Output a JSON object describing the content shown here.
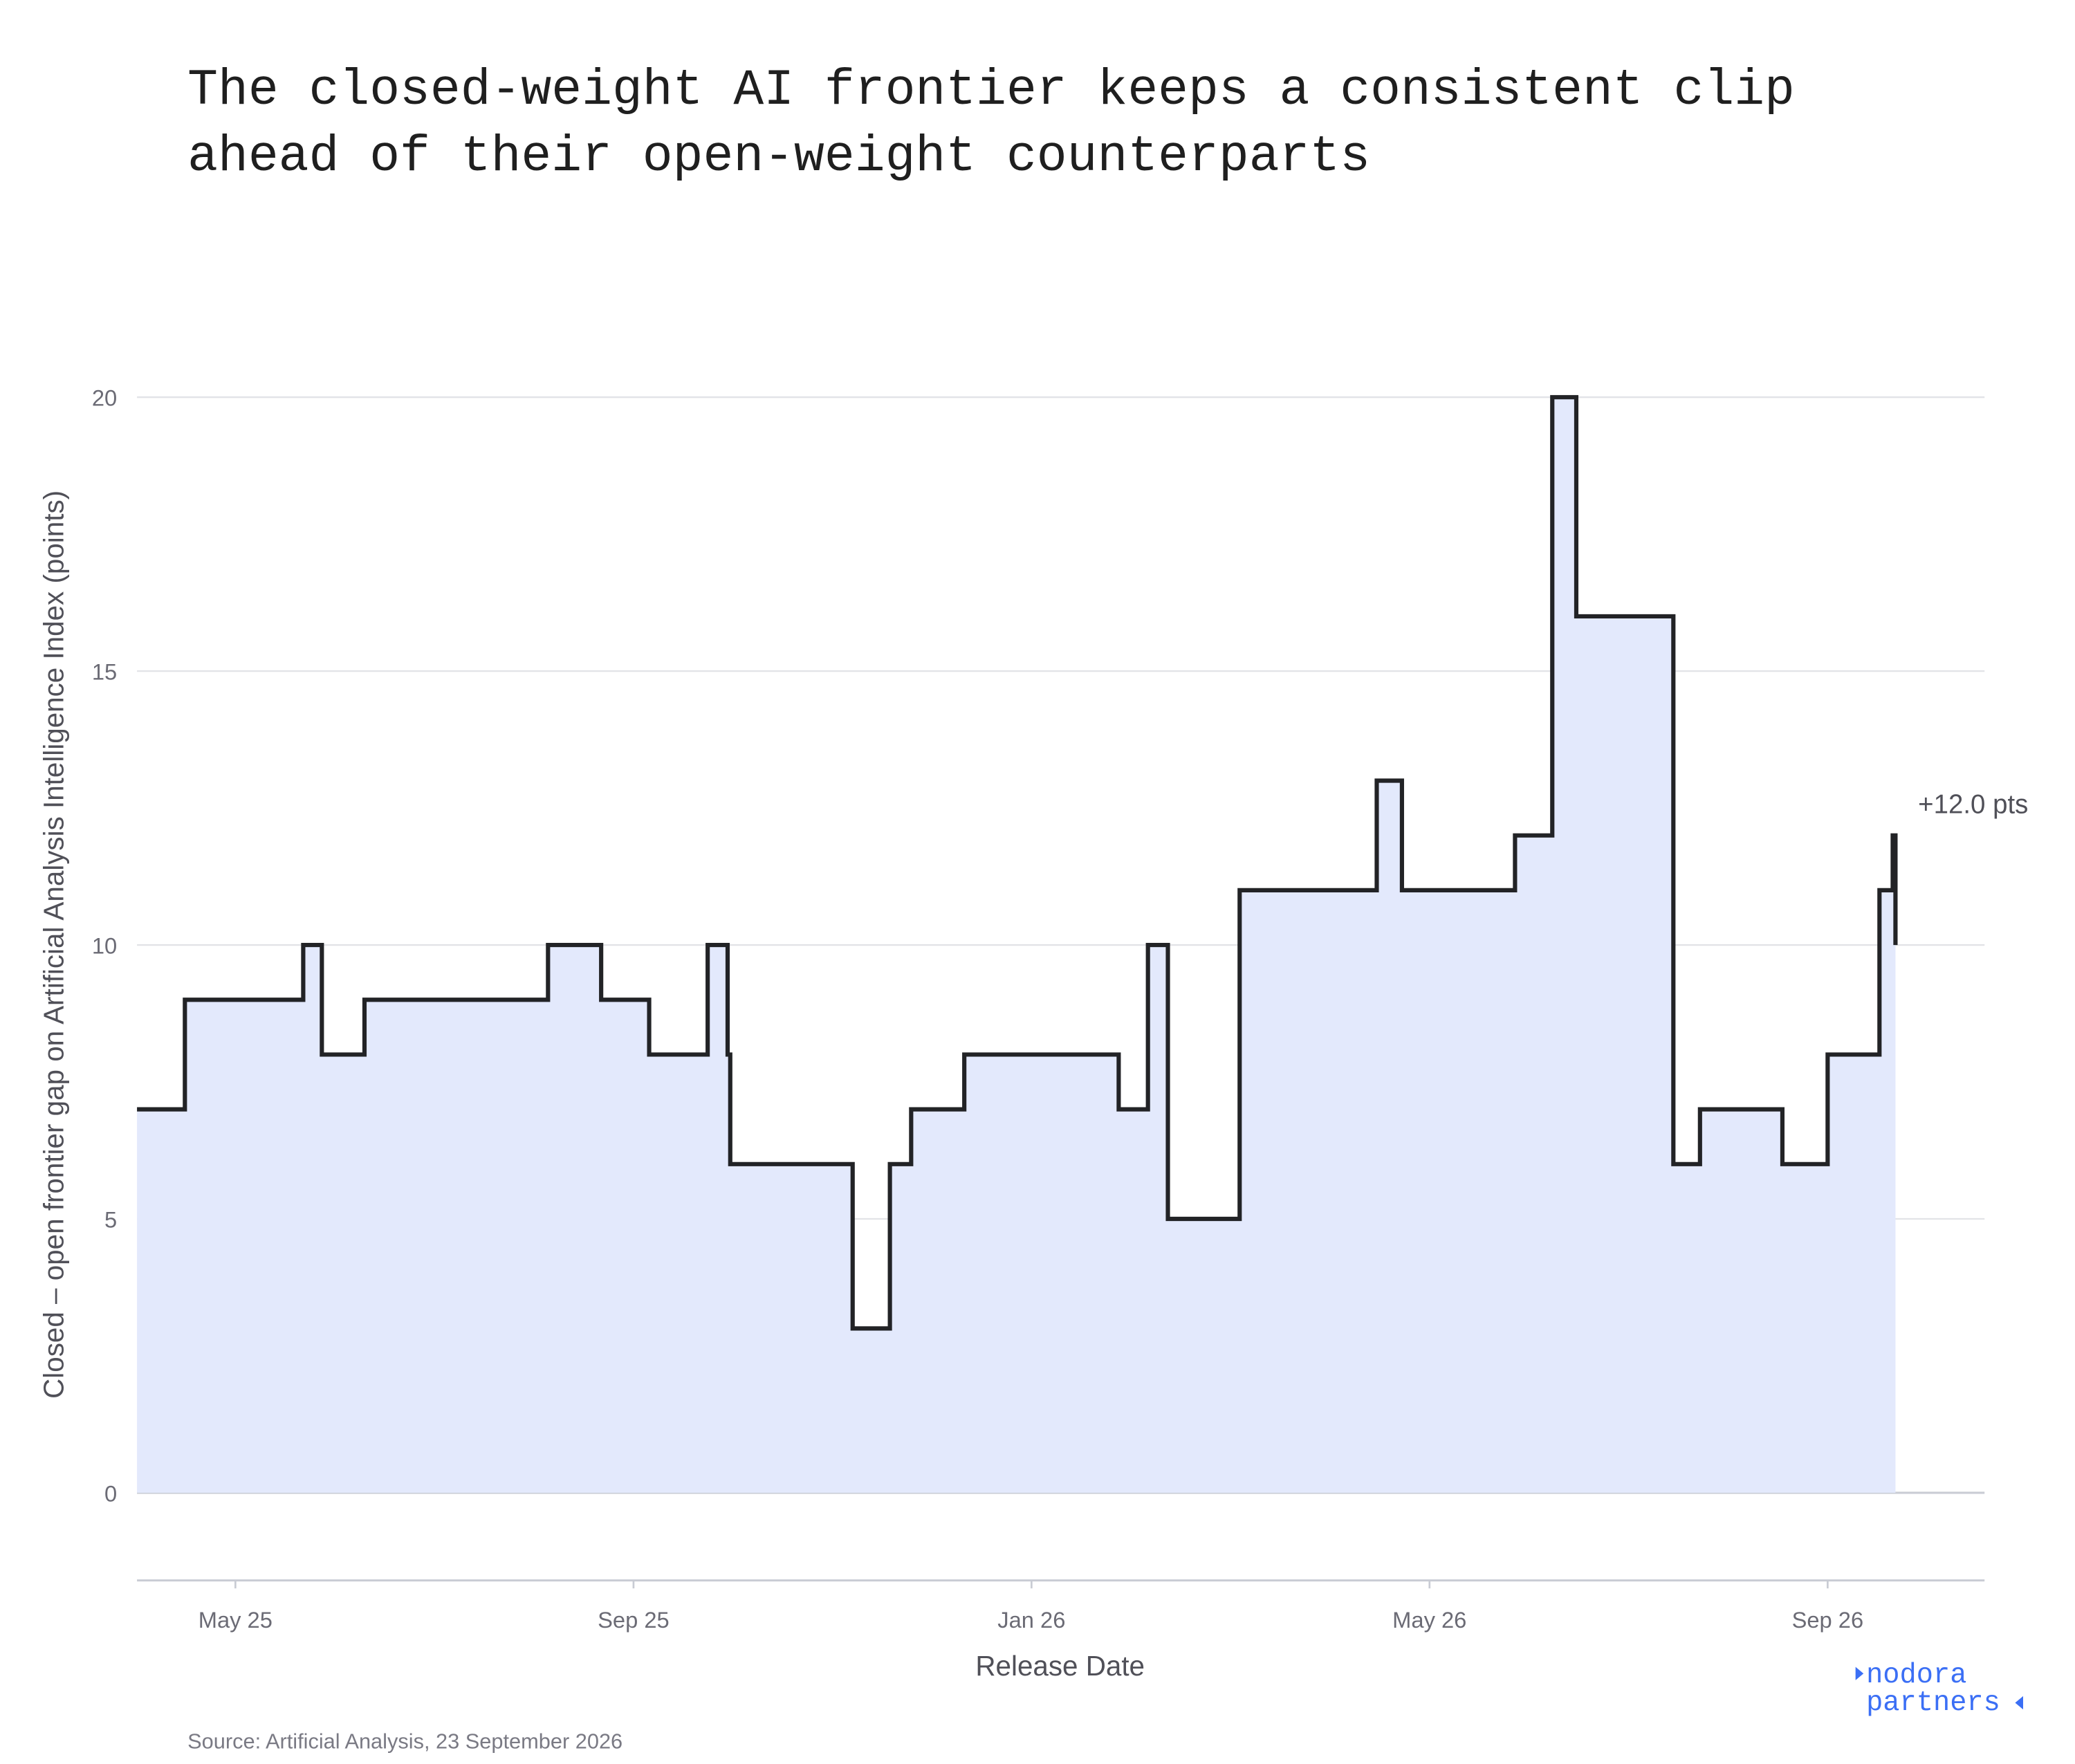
{
  "chart_data": {
    "type": "line",
    "step": true,
    "title": [
      "The closed-weight AI frontier keeps a consistent clip",
      "ahead of their open-weight counterparts"
    ],
    "x_label": "Release Date",
    "y_label": "Closed – open frontier gap on Artificial Analysis Intelligence Index (points)",
    "x": [
      2025.2509,
      2025.291,
      2025.3901,
      2025.4057,
      2025.4414,
      2025.5951,
      2025.6396,
      2025.6798,
      2025.7288,
      2025.7455,
      2025.7477,
      2025.8502,
      2025.8814,
      2025.8992,
      2025.9437,
      2026.073,
      2026.0975,
      2026.1142,
      2026.1743,
      2026.2891,
      2026.3102,
      2026.4049,
      2026.4361,
      2026.4562,
      2026.5375,
      2026.5598,
      2026.6288,
      2026.6667,
      2026.7101,
      2026.7212,
      2026.7235
    ],
    "values": [
      7,
      9,
      10,
      8,
      9,
      10,
      9,
      8,
      10,
      8,
      6,
      3,
      6,
      7,
      8,
      7,
      10,
      5,
      11,
      13,
      11,
      12,
      20,
      16,
      6,
      7,
      6,
      8,
      11,
      12,
      10
    ],
    "line_color": "#222326",
    "fill_color": "#e3e9fc",
    "xlim": [
      2025.2509,
      2026.7981
    ],
    "xticks": [
      {
        "value": 2025.3333,
        "label": "May 25"
      },
      {
        "value": 2025.6667,
        "label": "Sep 25"
      },
      {
        "value": 2026.0,
        "label": "Jan 26"
      },
      {
        "value": 2026.3333,
        "label": "May 26"
      },
      {
        "value": 2026.6667,
        "label": "Sep 26"
      }
    ],
    "ylim": [
      -1.6,
      20.5
    ],
    "yticks": [
      0,
      5,
      10,
      15,
      20
    ],
    "grid": true,
    "annotation": "+12.0 pts",
    "source": "Source: Artificial Analysis, 23 September 2026"
  },
  "logo": {
    "line1": "nodora",
    "line2": "partners"
  }
}
